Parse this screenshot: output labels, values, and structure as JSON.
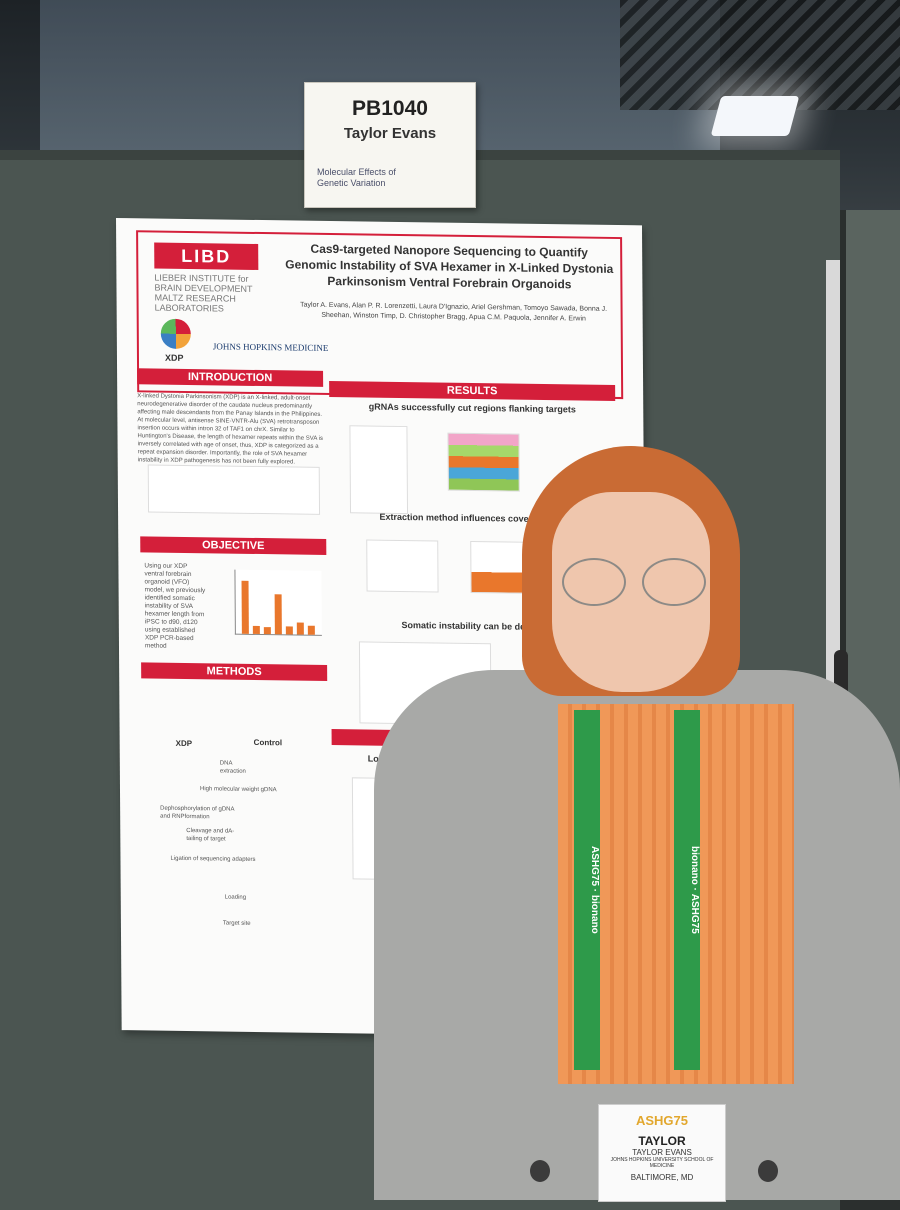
{
  "sign": {
    "code": "PB1040",
    "name": "Taylor Evans",
    "category": "Molecular Effects of Genetic Variation"
  },
  "poster": {
    "brand": "LIBD",
    "institute": "LIEBER INSTITUTE for BRAIN DEVELOPMENT MALTZ RESEARCH LABORATORIES",
    "partner_logo": "XDP",
    "partner2": "JOHNS HOPKINS MEDICINE",
    "title": "Cas9-targeted Nanopore Sequencing to Quantify Genomic Instability of SVA Hexamer in X-Linked Dystonia Parkinsonism Ventral Forebrain Organoids",
    "authors": "Taylor A. Evans, Alan P. R. Lorenzetti, Laura D'Ignazio, Ariel Gershman, Tomoyo Sawada, Bonna J. Sheehan, Winston Timp, D. Christopher Bragg, Apua C.M. Paquola, Jennifer A. Erwin",
    "sections": {
      "introduction": "INTRODUCTION",
      "objective": "OBJECTIVE",
      "methods": "METHODS",
      "results": "RESULTS"
    },
    "intro_text": "X-linked Dystonia Parkinsonism (XDP) is an X-linked, adult-onset neurodegenerative disorder of the caudate nucleus predominantly affecting male descendants from the Panay Islands in the Philippines. At molecular level, antisense SINE-VNTR-Alu (SVA) retrotransposon insertion occurs within intron 32 of TAF1 on chrX. Similar to Huntington's Disease, the length of hexamer repeats within the SVA is inversely correlated with age of onset, thus, XDP is categorized as a repeat expansion disorder. Importantly, the role of SVA hexamer instability in XDP pathogenesis has not been fully explored.",
    "objective_text": "Using our XDP ventral forebrain organoid (VFO) model, we previously identified somatic instability of SVA hexamer length from iPSC to d90, d120 using established XDP PCR-based method",
    "results_headings": [
      "gRNAs successfully cut regions flanking targets",
      "Extraction method influences coverage in X",
      "Somatic instability can be detecte",
      "Long-read"
    ],
    "methods_labels": [
      "XDP",
      "Control",
      "DNA extraction",
      "High molecular weight gDNA",
      "Dephosphorylation of gDNA and RNPformation",
      "Cleavage and dA-tailing of target",
      "Ligation of sequencing adapters",
      "Loading",
      "Target site"
    ],
    "objective_bars": [
      53.3,
      8.3,
      6.9,
      40.2,
      8.3,
      12.3,
      9.1
    ]
  },
  "badge": {
    "logo": "ASHG75",
    "first": "TAYLOR",
    "full": "TAYLOR EVANS",
    "school": "JOHNS HOPKINS UNIVERSITY SCHOOL OF MEDICINE",
    "city": "BALTIMORE, MD"
  },
  "lanyard": {
    "text1": "ASHG75",
    "text2": "bionano"
  },
  "colors": {
    "poster_red": "#d41f3a",
    "lanyard_green": "#2e9a4a",
    "sweater_orange": "#f09858"
  }
}
